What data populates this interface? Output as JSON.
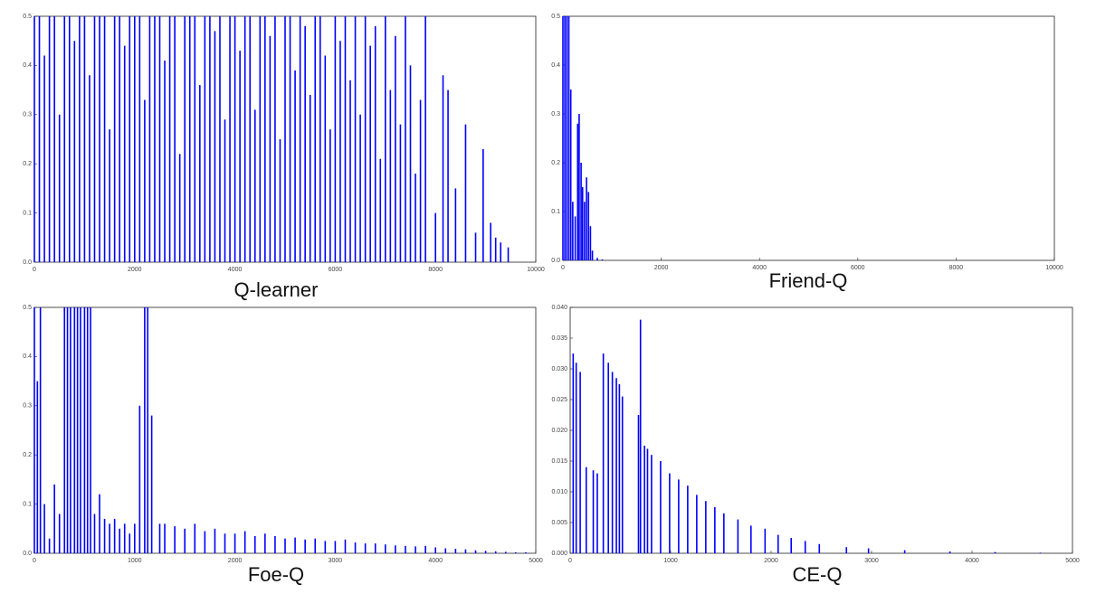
{
  "chart_data": [
    {
      "type": "vlines",
      "title": "Q-learner",
      "color": "#0000ff",
      "x": [
        0,
        100,
        200,
        300,
        400,
        500,
        600,
        700,
        800,
        900,
        1000,
        1100,
        1200,
        1300,
        1400,
        1500,
        1600,
        1700,
        1800,
        1900,
        2000,
        2100,
        2200,
        2300,
        2400,
        2500,
        2600,
        2700,
        2800,
        2900,
        3000,
        3100,
        3200,
        3300,
        3400,
        3500,
        3600,
        3700,
        3800,
        3900,
        4000,
        4100,
        4200,
        4300,
        4400,
        4500,
        4600,
        4700,
        4800,
        4900,
        5000,
        5100,
        5200,
        5300,
        5400,
        5500,
        5600,
        5700,
        5800,
        5900,
        6000,
        6100,
        6200,
        6300,
        6400,
        6500,
        6600,
        6700,
        6800,
        6900,
        7000,
        7100,
        7200,
        7300,
        7400,
        7500,
        7600,
        7700,
        7800,
        8000,
        8150,
        8250,
        8400,
        8600,
        8800,
        8950,
        9100,
        9200,
        9300,
        9450
      ],
      "values": [
        0.5,
        0.5,
        0.42,
        0.5,
        0.5,
        0.3,
        0.5,
        0.5,
        0.45,
        0.5,
        0.5,
        0.38,
        0.5,
        0.5,
        0.5,
        0.27,
        0.5,
        0.5,
        0.44,
        0.5,
        0.5,
        0.5,
        0.33,
        0.5,
        0.5,
        0.5,
        0.41,
        0.5,
        0.5,
        0.22,
        0.5,
        0.5,
        0.5,
        0.36,
        0.5,
        0.5,
        0.47,
        0.5,
        0.29,
        0.5,
        0.5,
        0.43,
        0.5,
        0.5,
        0.31,
        0.5,
        0.5,
        0.46,
        0.5,
        0.25,
        0.5,
        0.5,
        0.39,
        0.5,
        0.48,
        0.34,
        0.5,
        0.5,
        0.42,
        0.27,
        0.5,
        0.45,
        0.5,
        0.37,
        0.5,
        0.3,
        0.5,
        0.44,
        0.48,
        0.21,
        0.5,
        0.35,
        0.46,
        0.28,
        0.5,
        0.4,
        0.18,
        0.33,
        0.5,
        0.1,
        0.38,
        0.35,
        0.15,
        0.28,
        0.06,
        0.23,
        0.08,
        0.05,
        0.04,
        0.03
      ],
      "xlim": [
        0,
        10000
      ],
      "xticks": [
        0,
        2000,
        4000,
        6000,
        8000,
        10000
      ],
      "ylim": [
        0,
        0.5
      ],
      "yticks": [
        {
          "value": 0,
          "label": "0.0"
        },
        0.1,
        0.2,
        0.3,
        0.4,
        0.5
      ]
    },
    {
      "type": "vlines",
      "title": "Friend-Q",
      "color": "#0000ff",
      "x": [
        0,
        40,
        80,
        120,
        160,
        200,
        250,
        300,
        330,
        370,
        400,
        440,
        480,
        520,
        560,
        600,
        700,
        800
      ],
      "values": [
        0.5,
        0.5,
        0.5,
        0.5,
        0.35,
        0.12,
        0.09,
        0.28,
        0.3,
        0.2,
        0.15,
        0.12,
        0.17,
        0.14,
        0.07,
        0.02,
        0.005,
        0.002
      ],
      "xlim": [
        0,
        10000
      ],
      "xticks": [
        0,
        2000,
        4000,
        6000,
        8000,
        10000
      ],
      "ylim": [
        0,
        0.5
      ],
      "yticks": [
        {
          "value": 0,
          "label": "0.0"
        },
        0.1,
        0.2,
        0.3,
        0.4,
        0.5
      ]
    },
    {
      "type": "vlines",
      "title": "Foe-Q",
      "color": "#0000ff",
      "x": [
        0,
        30,
        60,
        100,
        150,
        200,
        250,
        300,
        330,
        360,
        400,
        430,
        460,
        500,
        530,
        560,
        600,
        650,
        700,
        750,
        800,
        850,
        900,
        950,
        1000,
        1050,
        1100,
        1130,
        1170,
        1250,
        1300,
        1400,
        1500,
        1600,
        1700,
        1800,
        1900,
        2000,
        2100,
        2200,
        2300,
        2400,
        2500,
        2600,
        2700,
        2800,
        2900,
        3000,
        3100,
        3200,
        3300,
        3400,
        3500,
        3600,
        3700,
        3800,
        3900,
        4000,
        4100,
        4200,
        4300,
        4400,
        4500,
        4600,
        4700,
        4800,
        4900
      ],
      "values": [
        0.5,
        0.35,
        0.5,
        0.1,
        0.03,
        0.14,
        0.08,
        0.5,
        0.5,
        0.5,
        0.5,
        0.5,
        0.5,
        0.5,
        0.5,
        0.5,
        0.08,
        0.12,
        0.07,
        0.06,
        0.07,
        0.05,
        0.06,
        0.04,
        0.06,
        0.3,
        0.5,
        0.5,
        0.28,
        0.06,
        0.06,
        0.055,
        0.05,
        0.06,
        0.045,
        0.05,
        0.04,
        0.04,
        0.045,
        0.035,
        0.04,
        0.035,
        0.03,
        0.032,
        0.028,
        0.03,
        0.025,
        0.025,
        0.028,
        0.022,
        0.02,
        0.02,
        0.018,
        0.016,
        0.015,
        0.014,
        0.015,
        0.012,
        0.01,
        0.009,
        0.008,
        0.006,
        0.005,
        0.004,
        0.003,
        0.002,
        0.002
      ],
      "xlim": [
        0,
        5000
      ],
      "xticks": [
        0,
        1000,
        2000,
        3000,
        4000,
        5000
      ],
      "ylim": [
        0,
        0.5
      ],
      "yticks": [
        {
          "value": 0,
          "label": "0.0"
        },
        0.1,
        0.2,
        0.3,
        0.4,
        0.5
      ]
    },
    {
      "type": "vlines",
      "title": "CE-Q",
      "color": "#0000ff",
      "x": [
        30,
        60,
        100,
        160,
        230,
        270,
        330,
        380,
        420,
        460,
        490,
        520,
        680,
        700,
        740,
        770,
        810,
        900,
        990,
        1080,
        1170,
        1260,
        1350,
        1440,
        1530,
        1670,
        1800,
        1940,
        2070,
        2200,
        2340,
        2480,
        2750,
        2970,
        3330,
        3780,
        4230,
        4680
      ],
      "values": [
        0.0325,
        0.031,
        0.0295,
        0.014,
        0.0135,
        0.013,
        0.0325,
        0.031,
        0.0295,
        0.0285,
        0.0275,
        0.0255,
        0.0225,
        0.038,
        0.0175,
        0.017,
        0.016,
        0.015,
        0.013,
        0.012,
        0.011,
        0.0095,
        0.0085,
        0.0075,
        0.0065,
        0.0055,
        0.0045,
        0.004,
        0.003,
        0.0025,
        0.002,
        0.0015,
        0.001,
        0.0008,
        0.0005,
        0.0003,
        0.0002,
        0.0001
      ],
      "xlim": [
        0,
        5000
      ],
      "xticks": [
        0,
        1000,
        2000,
        3000,
        4000,
        5000
      ],
      "ylim": [
        0,
        0.04
      ],
      "yticks": [
        {
          "value": 0,
          "label": "0.000"
        },
        0.005,
        {
          "value": 0.01,
          "label": "0.010"
        },
        0.015,
        {
          "value": 0.02,
          "label": "0.020"
        },
        0.025,
        {
          "value": 0.03,
          "label": "0.030"
        },
        0.035,
        {
          "value": 0.04,
          "label": "0.040"
        }
      ]
    }
  ]
}
